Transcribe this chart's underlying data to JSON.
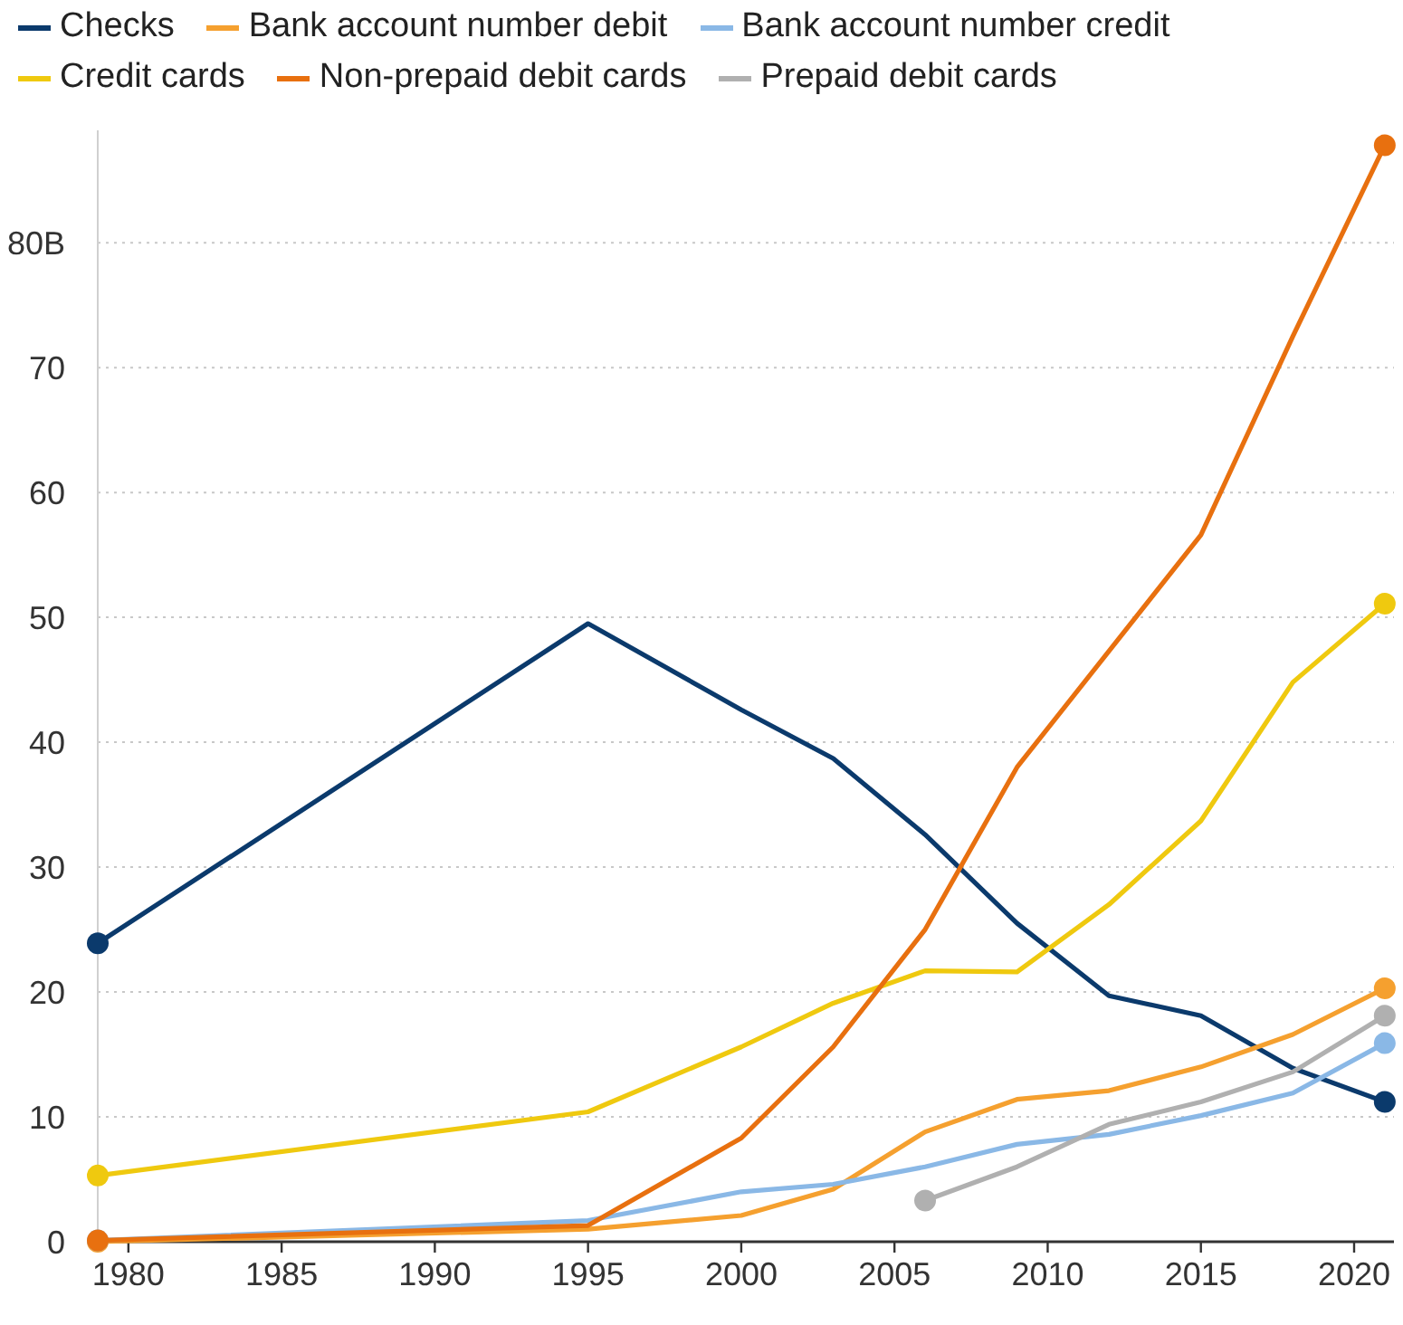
{
  "chart_data": {
    "type": "line",
    "x": [
      1979,
      1995,
      2000,
      2003,
      2006,
      2009,
      2012,
      2015,
      2018,
      2021
    ],
    "xlim": [
      1979,
      2021.3
    ],
    "xticks": [
      1980,
      1985,
      1990,
      1995,
      2000,
      2005,
      2010,
      2015,
      2020
    ],
    "ylim": [
      0,
      89
    ],
    "yticks": [
      0,
      10,
      20,
      30,
      40,
      50,
      60,
      70,
      {
        "value": 80,
        "label": "80B"
      }
    ],
    "grid": "y",
    "legend": "top",
    "line_style": "solid",
    "series": [
      {
        "name": "Checks",
        "color": "#0b3a6c",
        "values": [
          23.9,
          49.5,
          42.6,
          38.7,
          32.6,
          25.5,
          19.7,
          18.1,
          13.9,
          11.2
        ]
      },
      {
        "name": "Bank account number debit",
        "color": "#f5a02f",
        "values": [
          0,
          1.0,
          2.1,
          4.2,
          8.8,
          11.4,
          12.1,
          14.0,
          16.6,
          20.3
        ]
      },
      {
        "name": "Bank account number credit",
        "color": "#8ab8e6",
        "values": [
          0.1,
          1.7,
          4.0,
          4.6,
          6.0,
          7.8,
          8.6,
          10.1,
          11.9,
          15.9
        ]
      },
      {
        "name": "Credit cards",
        "color": "#efc90f",
        "values": [
          5.3,
          10.4,
          15.6,
          19.1,
          21.7,
          21.6,
          27.0,
          33.7,
          44.8,
          51.1
        ]
      },
      {
        "name": "Non-prepaid debit cards",
        "color": "#e8700f",
        "values": [
          0.1,
          1.3,
          8.3,
          15.6,
          25.0,
          38.0,
          47.3,
          56.6,
          72.5,
          87.8
        ]
      },
      {
        "name": "Prepaid debit cards",
        "color": "#b0b0b0",
        "values": [
          null,
          null,
          null,
          null,
          3.3,
          6.0,
          9.4,
          11.2,
          13.6,
          18.1
        ]
      }
    ]
  }
}
